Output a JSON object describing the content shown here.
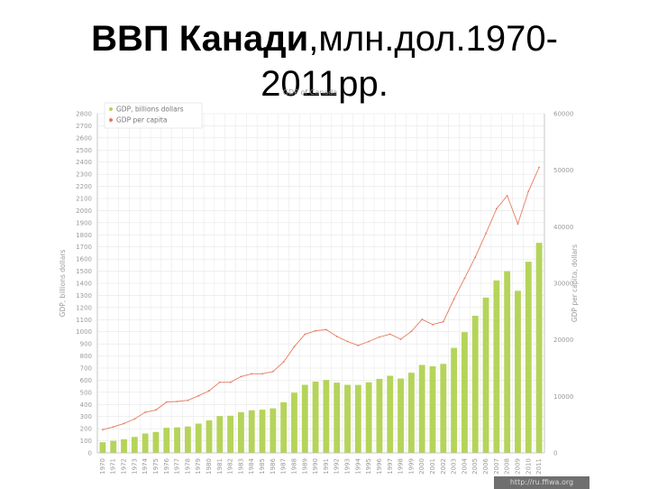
{
  "slide": {
    "title_bold": "ВВП Канади",
    "title_rest": ",млн.дол.1970-",
    "title_line2": "2011рр."
  },
  "source": "http://ru.ffiwa.org",
  "chart_data": {
    "type": "bar",
    "title": "GDP of Canada",
    "xlabel": "",
    "ylabel": "GDP, billions dollars",
    "y2label": "GDP per capita, dollars",
    "ylim": [
      0,
      2800
    ],
    "y2lim": [
      0,
      60000
    ],
    "yticks": [
      0,
      100,
      200,
      300,
      400,
      500,
      600,
      700,
      800,
      900,
      1000,
      1100,
      1200,
      1300,
      1400,
      1500,
      1600,
      1700,
      1800,
      1900,
      2000,
      2100,
      2200,
      2300,
      2400,
      2500,
      2600,
      2700,
      2800
    ],
    "y2ticks": [
      0,
      10000,
      20000,
      30000,
      40000,
      50000,
      60000
    ],
    "grid": true,
    "legend_position": "top-left",
    "colors": {
      "bars": "#b5d45a",
      "line": "#e87a5d",
      "grid": "#e6e6e6",
      "axis": "#bbbbbb"
    },
    "categories": [
      "1970",
      "1971",
      "1972",
      "1973",
      "1974",
      "1975",
      "1976",
      "1977",
      "1978",
      "1979",
      "1980",
      "1981",
      "1982",
      "1983",
      "1984",
      "1985",
      "1986",
      "1987",
      "1988",
      "1989",
      "1990",
      "1991",
      "1992",
      "1993",
      "1994",
      "1995",
      "1996",
      "1997",
      "1998",
      "1999",
      "2000",
      "2001",
      "2002",
      "2003",
      "2004",
      "2005",
      "2006",
      "2007",
      "2008",
      "2009",
      "2010",
      "2011"
    ],
    "series": [
      {
        "name": "GDP, billions dollars",
        "type": "bar",
        "axis": "left",
        "values": [
          88,
          100,
          113,
          132,
          160,
          173,
          207,
          211,
          218,
          242,
          269,
          304,
          307,
          337,
          352,
          357,
          368,
          418,
          497,
          562,
          589,
          602,
          580,
          562,
          561,
          583,
          611,
          637,
          614,
          662,
          726,
          715,
          735,
          867,
          997,
          1132,
          1282,
          1424,
          1500,
          1338,
          1578,
          1734
        ]
      },
      {
        "name": "GDP per capita",
        "type": "line",
        "axis": "right",
        "values": [
          4100,
          4600,
          5200,
          6000,
          7200,
          7600,
          9000,
          9100,
          9300,
          10100,
          11000,
          12500,
          12500,
          13500,
          14000,
          14000,
          14400,
          16100,
          18800,
          21000,
          21600,
          21800,
          20600,
          19700,
          19000,
          19700,
          20500,
          21000,
          20100,
          21500,
          23600,
          22700,
          23200,
          27200,
          30900,
          34600,
          38800,
          43200,
          45500,
          40500,
          46300,
          50500
        ]
      }
    ]
  }
}
